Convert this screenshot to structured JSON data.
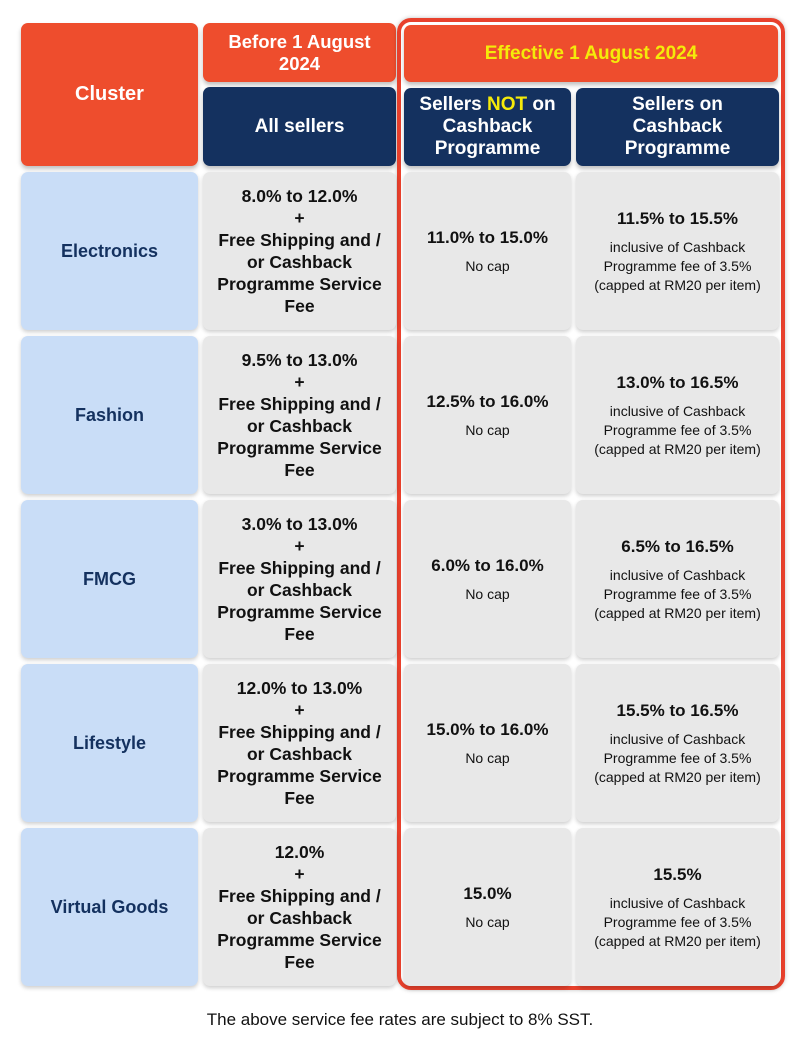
{
  "header": {
    "cluster": "Cluster",
    "before_title": "Before 1 August 2024",
    "before_sub": "All sellers",
    "effective_title": "Effective 1 August 2024",
    "not_on_cashback_pre": "Sellers ",
    "not_on_cashback_emph": "NOT",
    "not_on_cashback_post": "on  Cashback Programme",
    "on_cashback": "Sellers on Cashback Programme"
  },
  "plus": "+",
  "before_suffix": "Free Shipping and / or Cashback Programme Service Fee",
  "no_cap": "No cap",
  "cashback_note": "inclusive of Cashback Programme fee of 3.5% (capped at RM20 per item)",
  "rows": [
    {
      "cluster": "Electronics",
      "before": "8.0% to 12.0%",
      "not_on": "11.0% to 15.0%",
      "on": "11.5% to 15.5%"
    },
    {
      "cluster": "Fashion",
      "before": "9.5% to 13.0%",
      "not_on": "12.5% to 16.0%",
      "on": "13.0% to 16.5%"
    },
    {
      "cluster": "FMCG",
      "before": "3.0% to 13.0%",
      "not_on": "6.0% to 16.0%",
      "on": "6.5% to 16.5%"
    },
    {
      "cluster": "Lifestyle",
      "before": "12.0% to 13.0%",
      "not_on": "15.0% to 16.0%",
      "on": "15.5% to 16.5%"
    },
    {
      "cluster": "Virtual Goods",
      "before": "12.0%",
      "not_on": "15.0%",
      "on": "15.5%"
    }
  ],
  "footer": "The above service fee rates are subject to 8% SST."
}
